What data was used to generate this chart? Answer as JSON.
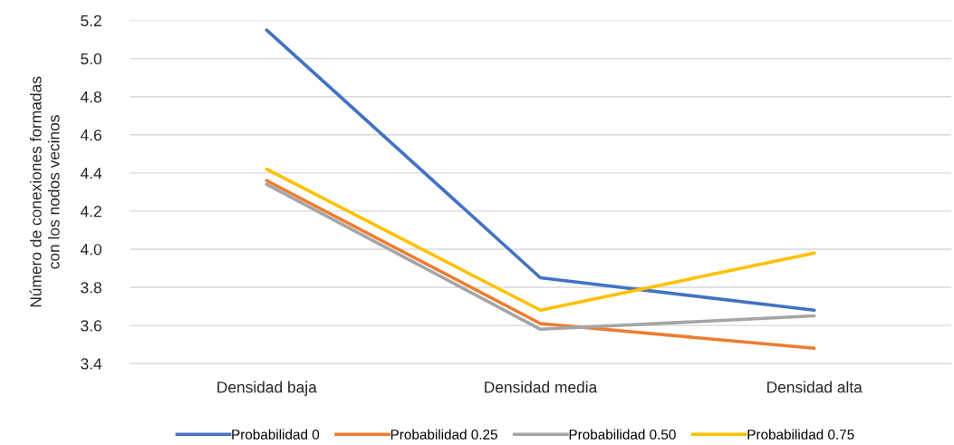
{
  "chart_data": {
    "type": "line",
    "ylabel": "Número de conexiones formadas\ncon los nodos vecinos",
    "categories": [
      "Densidad baja",
      "Densidad media",
      "Densidad alta"
    ],
    "series": [
      {
        "name": "Probabilidad 0",
        "color": "#4472c4",
        "values": [
          5.15,
          3.85,
          3.68
        ]
      },
      {
        "name": "Probabilidad 0.25",
        "color": "#ed7d31",
        "values": [
          4.36,
          3.61,
          3.48
        ]
      },
      {
        "name": "Probabilidad 0.50",
        "color": "#a5a5a5",
        "values": [
          4.34,
          3.58,
          3.65
        ]
      },
      {
        "name": "Probabilidad 0.75",
        "color": "#ffc000",
        "values": [
          4.42,
          3.68,
          3.98
        ]
      }
    ],
    "ylim": [
      3.4,
      5.2
    ],
    "yticks": [
      {
        "value": 3.4,
        "label": "3.4"
      },
      {
        "value": 3.6,
        "label": "3.6"
      },
      {
        "value": 3.8,
        "label": "3.8"
      },
      {
        "value": 4.0,
        "label": "4.0"
      },
      {
        "value": 4.2,
        "label": "4.2"
      },
      {
        "value": 4.4,
        "label": "4.4"
      },
      {
        "value": 4.6,
        "label": "4.6"
      },
      {
        "value": 4.8,
        "label": "4.8"
      },
      {
        "value": 5.0,
        "label": "5.0"
      },
      {
        "value": 5.2,
        "label": "5.2"
      }
    ],
    "grid": "y",
    "legend": "bottom",
    "marker": "none",
    "line_style": "solid"
  }
}
